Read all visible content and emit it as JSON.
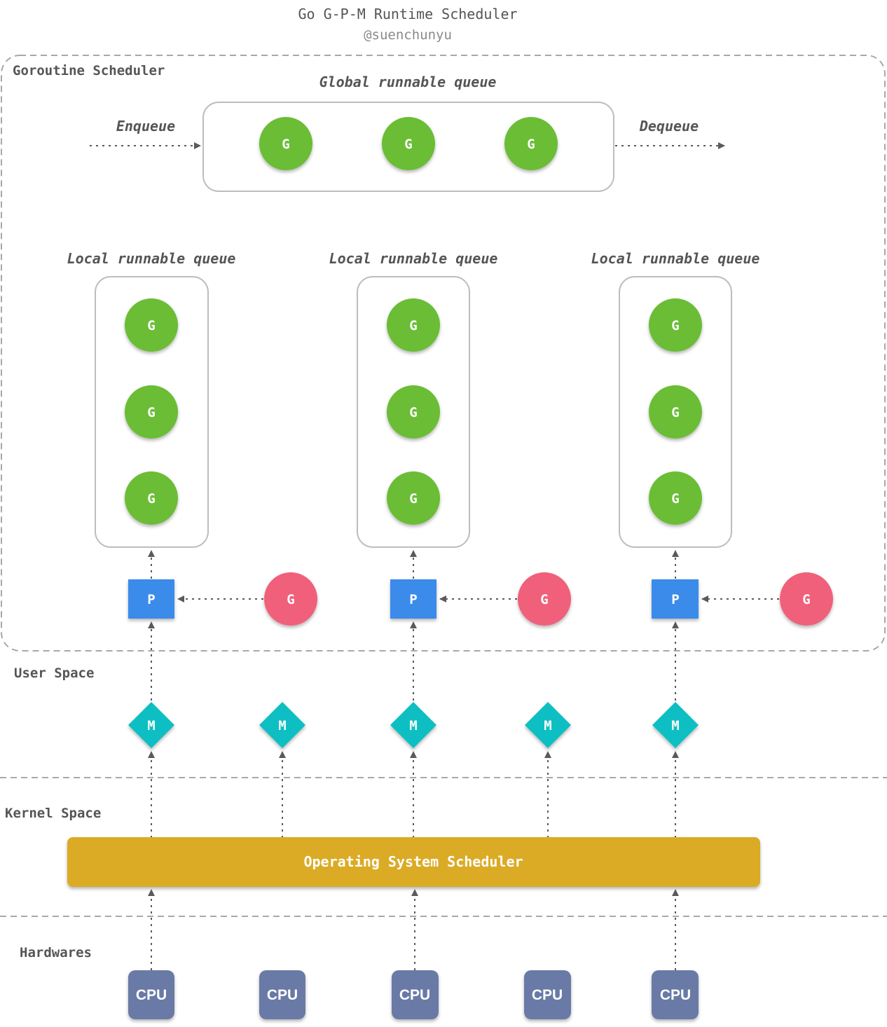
{
  "title": "Go G-P-M Runtime Scheduler",
  "author": "@suenchunyu",
  "scheduler_label": "Goroutine Scheduler",
  "global_queue": {
    "title": "Global runnable queue",
    "enqueue": "Enqueue",
    "dequeue": "Dequeue",
    "items": [
      "G",
      "G",
      "G"
    ]
  },
  "local_queues": [
    {
      "title": "Local runnable queue",
      "items": [
        "G",
        "G",
        "G"
      ]
    },
    {
      "title": "Local runnable queue",
      "items": [
        "G",
        "G",
        "G"
      ]
    },
    {
      "title": "Local runnable queue",
      "items": [
        "G",
        "G",
        "G"
      ]
    }
  ],
  "processors": [
    "P",
    "P",
    "P"
  ],
  "running_goroutines": [
    "G",
    "G",
    "G"
  ],
  "machines": [
    "M",
    "M",
    "M",
    "M",
    "M"
  ],
  "os_scheduler": "Operating System Scheduler",
  "cpus": [
    "CPU",
    "CPU",
    "CPU",
    "CPU",
    "CPU"
  ],
  "layers": {
    "user": "User Space",
    "kernel": "Kernel Space",
    "hardware": "Hardwares"
  },
  "colors": {
    "goroutine_queued": "#6bbd35",
    "goroutine_running": "#f0607a",
    "processor": "#3b8bea",
    "machine": "#10bfc2",
    "os_scheduler": "#dbab26",
    "cpu": "#6a7aa6"
  }
}
